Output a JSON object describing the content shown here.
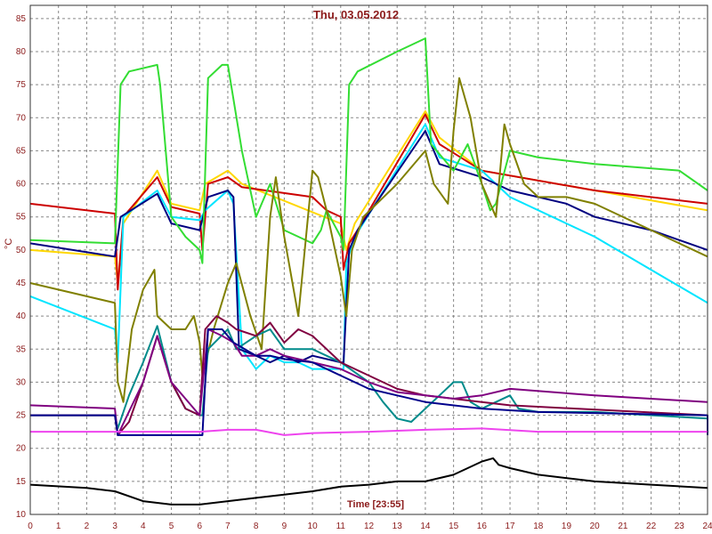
{
  "chart_data": {
    "type": "line",
    "title": "Thu, 03.05.2012",
    "xlabel": "Time [23:55]",
    "ylabel": "°C",
    "xlim": [
      0,
      24
    ],
    "ylim": [
      10,
      87
    ],
    "grid": true,
    "x_ticks": [
      "0",
      "1",
      "2",
      "3",
      "4",
      "5",
      "6",
      "7",
      "8",
      "9",
      "10",
      "11",
      "12",
      "13",
      "14",
      "15",
      "16",
      "17",
      "18",
      "19",
      "20",
      "21",
      "22",
      "23",
      "24"
    ],
    "y_ticks": [
      "10",
      "15",
      "20",
      "25",
      "30",
      "35",
      "40",
      "45",
      "50",
      "55",
      "60",
      "65",
      "70",
      "75",
      "80",
      "85"
    ],
    "series": [
      {
        "color": "#ffd700",
        "points": [
          [
            0,
            50
          ],
          [
            3,
            49
          ],
          [
            3.1,
            45
          ],
          [
            3.3,
            54
          ],
          [
            4.5,
            62
          ],
          [
            5,
            57
          ],
          [
            6,
            56
          ],
          [
            6.2,
            60
          ],
          [
            7,
            62
          ],
          [
            7.5,
            60
          ],
          [
            11,
            54
          ],
          [
            11.2,
            50
          ],
          [
            11.5,
            54
          ],
          [
            14,
            71
          ],
          [
            14.5,
            67
          ],
          [
            16,
            62
          ],
          [
            20,
            59
          ],
          [
            24,
            56
          ]
        ]
      },
      {
        "color": "#cc0000",
        "points": [
          [
            0,
            57
          ],
          [
            3,
            55.5
          ],
          [
            3.1,
            44
          ],
          [
            3.3,
            55
          ],
          [
            4.5,
            61
          ],
          [
            5,
            56.5
          ],
          [
            6,
            55.5
          ],
          [
            6.1,
            50
          ],
          [
            6.3,
            60
          ],
          [
            7,
            61
          ],
          [
            7.5,
            59.5
          ],
          [
            10,
            58
          ],
          [
            10.5,
            56
          ],
          [
            11,
            55
          ],
          [
            11.1,
            47
          ],
          [
            11.3,
            51
          ],
          [
            11.6,
            53
          ],
          [
            14,
            70.5
          ],
          [
            14.5,
            66
          ],
          [
            16,
            62
          ],
          [
            20,
            59
          ],
          [
            24,
            57
          ]
        ]
      },
      {
        "color": "#00e5ff",
        "points": [
          [
            0,
            43
          ],
          [
            3,
            38
          ],
          [
            3.1,
            33
          ],
          [
            3.3,
            55
          ],
          [
            4.5,
            59
          ],
          [
            5,
            55
          ],
          [
            6,
            54.5
          ],
          [
            6.2,
            56
          ],
          [
            7,
            59
          ],
          [
            7.2,
            57
          ],
          [
            7.5,
            35
          ],
          [
            8,
            32
          ],
          [
            8.5,
            34
          ],
          [
            9,
            33
          ],
          [
            9.5,
            33
          ],
          [
            10,
            32
          ],
          [
            11,
            32
          ],
          [
            11.1,
            32
          ],
          [
            11.2,
            48
          ],
          [
            11.5,
            52
          ],
          [
            14,
            69
          ],
          [
            14.5,
            64
          ],
          [
            16,
            62
          ],
          [
            17,
            58
          ],
          [
            20,
            52
          ],
          [
            24,
            42
          ]
        ]
      },
      {
        "color": "#000080",
        "points": [
          [
            0,
            51
          ],
          [
            3,
            49
          ],
          [
            3.2,
            55
          ],
          [
            4.5,
            58.5
          ],
          [
            5,
            54
          ],
          [
            6,
            53
          ],
          [
            6.3,
            58
          ],
          [
            7,
            59
          ],
          [
            7.2,
            58
          ],
          [
            7.4,
            35
          ],
          [
            8,
            34
          ],
          [
            8.5,
            33
          ],
          [
            9,
            34
          ],
          [
            9.5,
            33
          ],
          [
            10,
            34
          ],
          [
            11,
            33
          ],
          [
            11.1,
            33
          ],
          [
            11.3,
            50
          ],
          [
            11.6,
            53
          ],
          [
            14,
            68
          ],
          [
            14.5,
            63
          ],
          [
            16,
            61
          ],
          [
            17,
            59
          ],
          [
            19,
            57
          ],
          [
            20,
            55
          ],
          [
            22,
            53
          ],
          [
            24,
            50
          ]
        ]
      },
      {
        "color": "#33dd33",
        "points": [
          [
            0,
            51.5
          ],
          [
            3,
            51
          ],
          [
            3.2,
            75
          ],
          [
            3.5,
            77
          ],
          [
            4.5,
            78
          ],
          [
            4.6,
            75
          ],
          [
            5,
            55
          ],
          [
            5.5,
            52
          ],
          [
            6,
            50
          ],
          [
            6.1,
            48
          ],
          [
            6.3,
            76
          ],
          [
            6.8,
            78
          ],
          [
            7,
            78
          ],
          [
            7.5,
            65
          ],
          [
            8,
            55
          ],
          [
            8.3,
            58
          ],
          [
            8.5,
            60
          ],
          [
            9,
            53
          ],
          [
            10,
            51
          ],
          [
            10.3,
            53
          ],
          [
            10.5,
            56
          ],
          [
            11,
            52
          ],
          [
            11.1,
            50
          ],
          [
            11.3,
            75
          ],
          [
            11.6,
            77
          ],
          [
            13,
            80
          ],
          [
            14,
            82
          ],
          [
            14.2,
            66
          ],
          [
            15,
            62
          ],
          [
            15.5,
            66
          ],
          [
            16,
            60
          ],
          [
            16.3,
            56
          ],
          [
            16.5,
            57
          ],
          [
            17,
            65
          ],
          [
            18,
            64
          ],
          [
            20,
            63
          ],
          [
            23,
            62
          ],
          [
            24,
            59
          ]
        ]
      },
      {
        "color": "#808000",
        "points": [
          [
            0,
            45
          ],
          [
            3,
            42
          ],
          [
            3.1,
            30
          ],
          [
            3.3,
            27
          ],
          [
            3.6,
            38
          ],
          [
            4,
            44
          ],
          [
            4.4,
            47
          ],
          [
            4.5,
            40
          ],
          [
            5,
            38
          ],
          [
            5.5,
            38
          ],
          [
            5.8,
            40
          ],
          [
            6,
            36
          ],
          [
            6.1,
            31
          ],
          [
            6.5,
            38
          ],
          [
            7,
            45
          ],
          [
            7.3,
            48
          ],
          [
            7.8,
            40
          ],
          [
            8.2,
            35
          ],
          [
            8.5,
            55
          ],
          [
            8.7,
            61
          ],
          [
            9,
            52
          ],
          [
            9.5,
            40
          ],
          [
            10,
            62
          ],
          [
            10.2,
            61
          ],
          [
            10.5,
            56
          ],
          [
            11,
            46
          ],
          [
            11.2,
            40
          ],
          [
            11.4,
            50
          ],
          [
            11.8,
            55
          ],
          [
            13,
            60
          ],
          [
            14,
            65
          ],
          [
            14.3,
            60
          ],
          [
            14.8,
            57
          ],
          [
            15,
            68
          ],
          [
            15.2,
            76
          ],
          [
            15.6,
            70
          ],
          [
            16,
            60
          ],
          [
            16.5,
            55
          ],
          [
            16.8,
            69
          ],
          [
            17,
            66
          ],
          [
            17.5,
            60
          ],
          [
            18,
            58
          ],
          [
            19,
            58
          ],
          [
            20,
            57
          ],
          [
            22,
            53
          ],
          [
            24,
            49
          ]
        ]
      },
      {
        "color": "#008b8b",
        "points": [
          [
            0,
            25
          ],
          [
            3,
            25
          ],
          [
            3.1,
            23
          ],
          [
            3.5,
            28
          ],
          [
            4,
            33
          ],
          [
            4.5,
            38.5
          ],
          [
            5,
            30
          ],
          [
            5.5,
            26
          ],
          [
            6,
            25
          ],
          [
            6.1,
            25
          ],
          [
            6.3,
            35
          ],
          [
            7,
            38
          ],
          [
            7.3,
            35
          ],
          [
            8,
            37
          ],
          [
            8.5,
            38
          ],
          [
            9,
            35
          ],
          [
            10,
            35
          ],
          [
            11,
            33
          ],
          [
            12,
            30
          ],
          [
            12.5,
            27
          ],
          [
            13,
            24.5
          ],
          [
            13.5,
            24
          ],
          [
            14,
            26
          ],
          [
            14.5,
            28
          ],
          [
            15,
            30
          ],
          [
            15.3,
            30
          ],
          [
            15.6,
            27
          ],
          [
            16,
            26
          ],
          [
            16.5,
            27
          ],
          [
            17,
            28
          ],
          [
            17.3,
            26
          ],
          [
            18,
            25.5
          ],
          [
            20,
            25.5
          ],
          [
            24,
            24.5
          ]
        ]
      },
      {
        "color": "#800040",
        "points": [
          [
            0,
            25
          ],
          [
            3,
            25
          ],
          [
            3.1,
            22
          ],
          [
            3.5,
            24
          ],
          [
            4,
            30
          ],
          [
            4.5,
            37
          ],
          [
            5,
            30
          ],
          [
            5.5,
            26
          ],
          [
            6,
            25
          ],
          [
            6.2,
            38
          ],
          [
            6.6,
            40
          ],
          [
            7,
            39
          ],
          [
            7.3,
            38
          ],
          [
            8,
            37
          ],
          [
            8.5,
            39
          ],
          [
            9,
            36
          ],
          [
            9.5,
            38
          ],
          [
            10,
            37
          ],
          [
            11,
            33
          ],
          [
            12,
            31
          ],
          [
            13,
            29
          ],
          [
            14,
            28
          ],
          [
            15,
            27.5
          ],
          [
            16,
            27
          ],
          [
            17,
            26.5
          ],
          [
            24,
            25
          ]
        ]
      },
      {
        "color": "#800080",
        "points": [
          [
            0,
            26.5
          ],
          [
            3,
            26
          ],
          [
            3.1,
            22
          ],
          [
            4,
            30
          ],
          [
            4.5,
            37
          ],
          [
            5,
            30
          ],
          [
            6,
            25
          ],
          [
            6.3,
            38
          ],
          [
            6.8,
            37
          ],
          [
            7.2,
            36
          ],
          [
            7.5,
            34
          ],
          [
            8,
            34
          ],
          [
            8.5,
            35
          ],
          [
            9,
            34
          ],
          [
            10,
            33
          ],
          [
            11,
            32
          ],
          [
            12,
            30
          ],
          [
            13,
            28.5
          ],
          [
            14,
            28
          ],
          [
            15,
            27.5
          ],
          [
            16,
            28
          ],
          [
            17,
            29
          ],
          [
            20,
            28
          ],
          [
            24,
            27
          ]
        ]
      },
      {
        "color": "#00008b",
        "points": [
          [
            0,
            25
          ],
          [
            3,
            25
          ],
          [
            3.1,
            22
          ],
          [
            6,
            22
          ],
          [
            6.1,
            22
          ],
          [
            6.3,
            38
          ],
          [
            6.8,
            38
          ],
          [
            7.2,
            36
          ],
          [
            8,
            34
          ],
          [
            8.5,
            34
          ],
          [
            9,
            33.5
          ],
          [
            10,
            33
          ],
          [
            11,
            31
          ],
          [
            12,
            29
          ],
          [
            13,
            28
          ],
          [
            14,
            27
          ],
          [
            16,
            26
          ],
          [
            18,
            25.5
          ],
          [
            24,
            25
          ],
          [
            24,
            22
          ]
        ]
      },
      {
        "color": "#ee44ee",
        "points": [
          [
            0,
            22.5
          ],
          [
            6,
            22.5
          ],
          [
            7,
            22.8
          ],
          [
            8,
            22.8
          ],
          [
            9,
            22
          ],
          [
            10,
            22.3
          ],
          [
            12,
            22.5
          ],
          [
            14,
            22.8
          ],
          [
            16,
            23
          ],
          [
            18,
            22.5
          ],
          [
            24,
            22.5
          ]
        ]
      },
      {
        "color": "#000000",
        "points": [
          [
            0,
            14.5
          ],
          [
            2,
            14
          ],
          [
            3,
            13.5
          ],
          [
            4,
            12
          ],
          [
            5,
            11.5
          ],
          [
            6,
            11.5
          ],
          [
            7,
            12
          ],
          [
            8,
            12.5
          ],
          [
            9,
            13
          ],
          [
            10,
            13.5
          ],
          [
            11,
            14.2
          ],
          [
            12,
            14.5
          ],
          [
            13,
            15
          ],
          [
            14,
            15
          ],
          [
            15,
            16
          ],
          [
            15.5,
            17
          ],
          [
            16,
            18
          ],
          [
            16.4,
            18.5
          ],
          [
            16.6,
            17.5
          ],
          [
            17,
            17
          ],
          [
            18,
            16
          ],
          [
            20,
            15
          ],
          [
            22,
            14.5
          ],
          [
            24,
            14
          ]
        ]
      }
    ]
  }
}
